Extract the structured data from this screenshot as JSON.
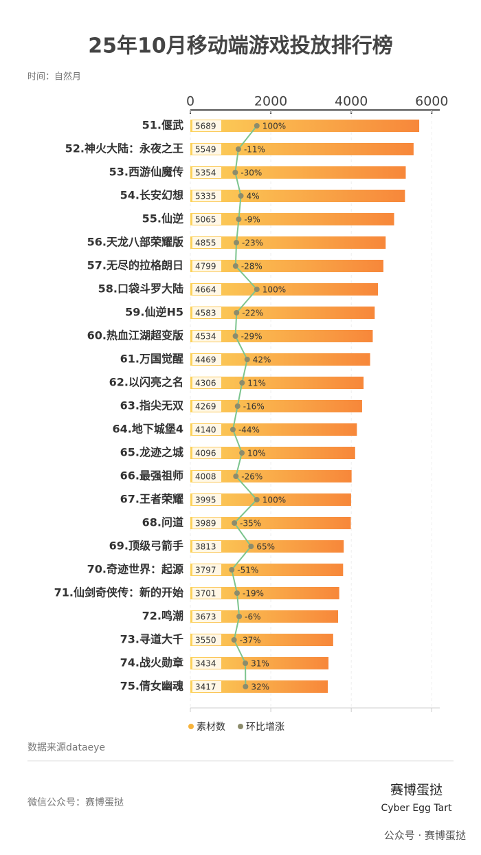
{
  "chart_data": {
    "type": "bar",
    "title": "25年10月移动端游戏投放排行榜",
    "subtitle": "时间：自然月",
    "categories": [
      "51.偃武",
      "52.神火大陆：永夜之王",
      "53.西游仙魔传",
      "54.长安幻想",
      "55.仙逆",
      "56.天龙八部荣耀版",
      "57.无尽的拉格朗日",
      "58.口袋斗罗大陆",
      "59.仙逆H5",
      "60.热血江湖超变版",
      "61.万国觉醒",
      "62.以闪亮之名",
      "63.指尖无双",
      "64.地下城堡4",
      "65.龙迹之城",
      "66.最强祖师",
      "67.王者荣耀",
      "68.问道",
      "69.顶级弓箭手",
      "70.奇迹世界：起源",
      "71.仙剑奇侠传：新的开始",
      "72.鸣潮",
      "73.寻道大千",
      "74.战火勋章",
      "75.倩女幽魂"
    ],
    "series": [
      {
        "name": "素材数",
        "color": "#f7a33c",
        "values": [
          5689,
          5549,
          5354,
          5335,
          5065,
          4855,
          4799,
          4664,
          4583,
          4534,
          4469,
          4306,
          4269,
          4140,
          4096,
          4008,
          3995,
          3989,
          3813,
          3797,
          3701,
          3673,
          3550,
          3434,
          3417
        ]
      },
      {
        "name": "环比增涨",
        "type": "line",
        "axis": "x2",
        "color": "#7cc48e",
        "values": [
          100,
          -11,
          -30,
          4,
          -9,
          -23,
          -28,
          100,
          -22,
          -29,
          42,
          11,
          -16,
          -44,
          10,
          -26,
          100,
          -35,
          65,
          -51,
          -19,
          -6,
          -37,
          31,
          32
        ],
        "value_labels": [
          "100%",
          "-11%",
          "-30%",
          "4%",
          "-9%",
          "-23%",
          "-28%",
          "100%",
          "-22%",
          "-29%",
          "42%",
          "11%",
          "-16%",
          "-44%",
          "10%",
          "-26%",
          "100%",
          "-35%",
          "65%",
          "-51%",
          "-19%",
          "-6%",
          "-37%",
          "31%",
          "32%"
        ]
      }
    ],
    "xlim": [
      0,
      6200
    ],
    "xticks": [
      0,
      2000,
      4000,
      6000
    ],
    "x2lim": [
      -300,
      1200
    ],
    "grid": true
  },
  "source": "数据来源dataeye",
  "footer": "微信公众号：赛博蛋挞",
  "logo": "赛博蛋挞",
  "logo_en": "Cyber Egg Tart",
  "wechat": "公众号 · 赛博蛋挞"
}
